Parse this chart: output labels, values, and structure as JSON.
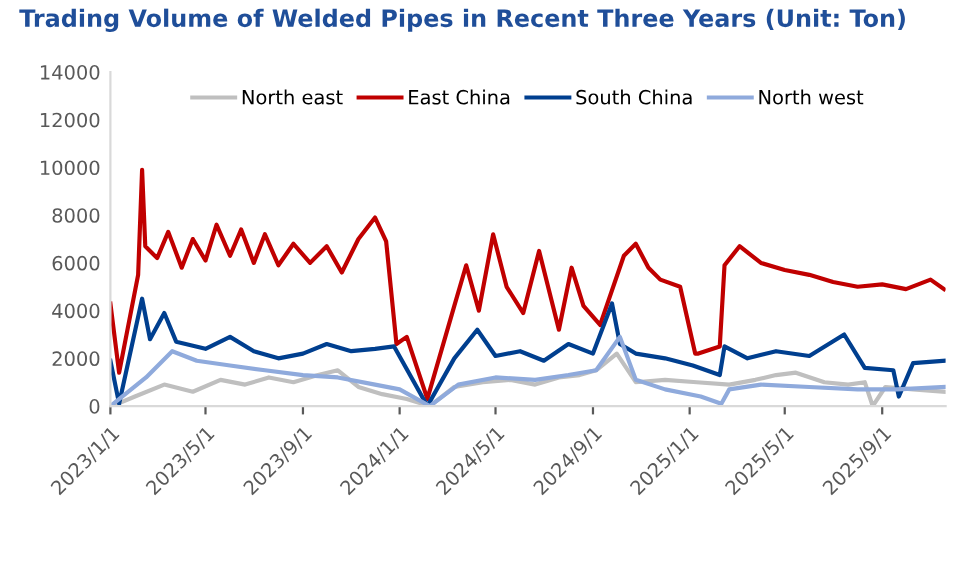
{
  "chart_data": {
    "type": "line",
    "title": "Trading Volume of Welded Pipes in Recent Three Years (Unit: Ton)",
    "ylim": [
      0,
      14000
    ],
    "yticks": [
      0,
      2000,
      4000,
      6000,
      8000,
      10000,
      12000,
      14000
    ],
    "xlim": [
      "2023-01-01",
      "2025-11-20"
    ],
    "xticks": [
      {
        "value": "2023-01-01",
        "label": "2023/1/1"
      },
      {
        "value": "2023-05-01",
        "label": "2023/5/1"
      },
      {
        "value": "2023-09-01",
        "label": "2023/9/1"
      },
      {
        "value": "2024-01-01",
        "label": "2024/1/1"
      },
      {
        "value": "2024-05-01",
        "label": "2024/5/1"
      },
      {
        "value": "2024-09-01",
        "label": "2024/9/1"
      },
      {
        "value": "2025-01-01",
        "label": "2025/1/1"
      },
      {
        "value": "2025-05-01",
        "label": "2025/5/1"
      },
      {
        "value": "2025-09-01",
        "label": "2025/9/1"
      }
    ],
    "legend": "top",
    "grid": false,
    "marker": "none",
    "line_style": "solid",
    "series": [
      {
        "name": "North east",
        "color": "#bfbfbf",
        "x": [
          "2023-01-03",
          "2023-02-01",
          "2023-03-10",
          "2023-04-15",
          "2023-05-20",
          "2023-06-20",
          "2023-07-20",
          "2023-08-20",
          "2023-09-20",
          "2023-10-15",
          "2023-11-10",
          "2023-12-10",
          "2024-01-10",
          "2024-02-08",
          "2024-03-10",
          "2024-04-15",
          "2024-05-20",
          "2024-06-20",
          "2024-07-20",
          "2024-08-15",
          "2024-09-05",
          "2024-10-01",
          "2024-10-25",
          "2024-12-01",
          "2025-01-10",
          "2025-02-20",
          "2025-03-25",
          "2025-04-20",
          "2025-05-15",
          "2025-06-20",
          "2025-07-20",
          "2025-08-10",
          "2025-08-20",
          "2025-09-05",
          "2025-10-10",
          "2025-11-18"
        ],
        "values": [
          0,
          400,
          900,
          600,
          1100,
          900,
          1200,
          1000,
          1300,
          1500,
          800,
          500,
          300,
          0,
          800,
          1000,
          1100,
          900,
          1200,
          1300,
          1500,
          2200,
          1000,
          1100,
          1000,
          900,
          1100,
          1300,
          1400,
          1000,
          900,
          1000,
          0,
          800,
          700,
          600
        ]
      },
      {
        "name": "East China",
        "color": "#c00000",
        "x": [
          "2023-01-01",
          "2023-01-12",
          "2023-02-05",
          "2023-02-10",
          "2023-02-14",
          "2023-03-01",
          "2023-03-15",
          "2023-04-01",
          "2023-04-15",
          "2023-05-01",
          "2023-05-15",
          "2023-06-01",
          "2023-06-15",
          "2023-07-01",
          "2023-07-15",
          "2023-08-01",
          "2023-08-20",
          "2023-09-10",
          "2023-10-01",
          "2023-10-20",
          "2023-11-10",
          "2023-12-01",
          "2023-12-15",
          "2023-12-28",
          "2024-01-10",
          "2024-02-05",
          "2024-03-10",
          "2024-03-25",
          "2024-04-10",
          "2024-04-28",
          "2024-05-15",
          "2024-06-05",
          "2024-06-25",
          "2024-07-20",
          "2024-08-05",
          "2024-08-20",
          "2024-09-10",
          "2024-10-10",
          "2024-10-25",
          "2024-11-10",
          "2024-11-25",
          "2024-12-20",
          "2025-01-08",
          "2025-01-12",
          "2025-02-08",
          "2025-02-14",
          "2025-03-05",
          "2025-04-01",
          "2025-05-01",
          "2025-06-01",
          "2025-07-01",
          "2025-08-01",
          "2025-09-01",
          "2025-10-01",
          "2025-11-01",
          "2025-11-18"
        ],
        "values": [
          4300,
          1400,
          5500,
          9900,
          6700,
          6200,
          7300,
          5800,
          7000,
          6100,
          7600,
          6300,
          7400,
          6000,
          7200,
          5900,
          6800,
          6000,
          6700,
          5600,
          7000,
          7900,
          6900,
          2600,
          2900,
          300,
          4200,
          5900,
          4000,
          7200,
          5000,
          3900,
          6500,
          3200,
          5800,
          4200,
          3400,
          6300,
          6800,
          5800,
          5300,
          5000,
          2200,
          2200,
          2500,
          5900,
          6700,
          6000,
          5700,
          5500,
          5200,
          5000,
          5100,
          4900,
          5300,
          4900
        ]
      },
      {
        "name": "South China",
        "color": "#003f8f",
        "x": [
          "2023-01-01",
          "2023-01-12",
          "2023-02-10",
          "2023-02-20",
          "2023-03-10",
          "2023-03-25",
          "2023-05-01",
          "2023-06-01",
          "2023-07-01",
          "2023-08-01",
          "2023-09-01",
          "2023-10-01",
          "2023-11-01",
          "2023-12-01",
          "2023-12-25",
          "2024-02-05",
          "2024-03-10",
          "2024-04-08",
          "2024-05-01",
          "2024-06-01",
          "2024-07-01",
          "2024-08-01",
          "2024-09-01",
          "2024-09-25",
          "2024-10-05",
          "2024-10-25",
          "2024-12-01",
          "2025-01-05",
          "2025-02-08",
          "2025-02-14",
          "2025-03-15",
          "2025-04-20",
          "2025-06-01",
          "2025-07-15",
          "2025-08-10",
          "2025-09-15",
          "2025-09-22",
          "2025-10-10",
          "2025-11-18"
        ],
        "values": [
          1900,
          100,
          4500,
          2800,
          3900,
          2700,
          2400,
          2900,
          2300,
          2000,
          2200,
          2600,
          2300,
          2400,
          2500,
          0,
          2000,
          3200,
          2100,
          2300,
          1900,
          2600,
          2200,
          4300,
          2600,
          2200,
          2000,
          1700,
          1300,
          2500,
          2000,
          2300,
          2100,
          3000,
          1600,
          1500,
          400,
          1800,
          1900
        ]
      },
      {
        "name": "North west",
        "color": "#8faadc",
        "x": [
          "2023-01-01",
          "2023-02-15",
          "2023-03-20",
          "2023-04-20",
          "2023-06-01",
          "2023-07-15",
          "2023-09-01",
          "2023-10-15",
          "2023-12-01",
          "2024-01-01",
          "2024-02-08",
          "2024-03-15",
          "2024-05-01",
          "2024-06-20",
          "2024-08-01",
          "2024-09-05",
          "2024-10-05",
          "2024-10-25",
          "2024-12-01",
          "2025-01-15",
          "2025-02-10",
          "2025-02-20",
          "2025-04-01",
          "2025-06-01",
          "2025-08-01",
          "2025-09-20",
          "2025-11-18"
        ],
        "values": [
          0,
          1200,
          2300,
          1900,
          1700,
          1500,
          1300,
          1200,
          900,
          700,
          0,
          900,
          1200,
          1100,
          1300,
          1500,
          2900,
          1100,
          700,
          400,
          100,
          700,
          900,
          800,
          700,
          700,
          800
        ]
      }
    ]
  }
}
